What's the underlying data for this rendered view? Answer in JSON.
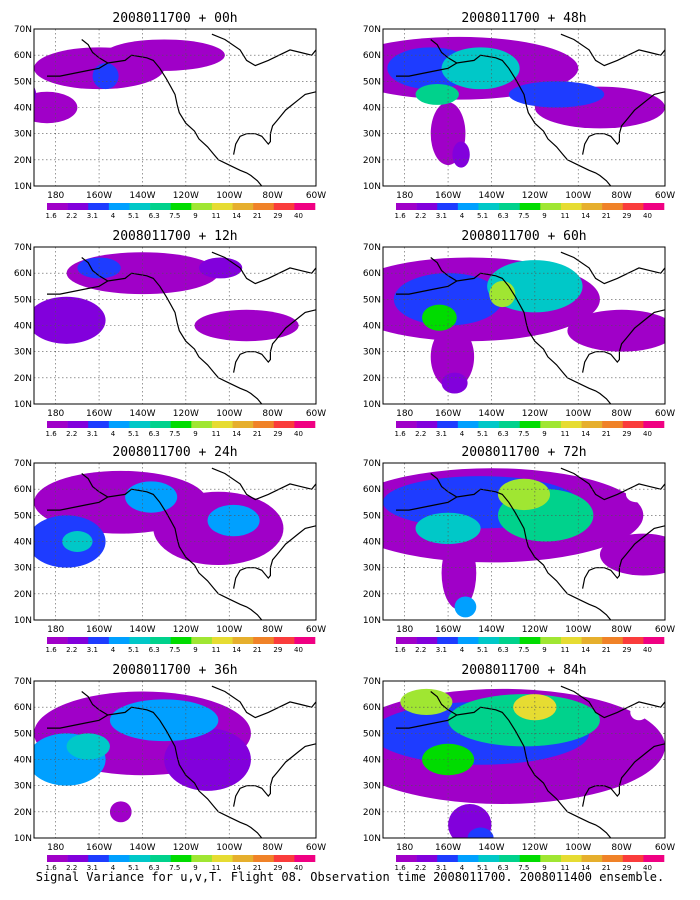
{
  "caption": "Signal Variance for u,v,T. Flight 08. Observation time 2008011700. 2008011400 ensemble.",
  "colorbar": {
    "labels": [
      "1.6",
      "2.2",
      "3.1",
      "4",
      "5.1",
      "6.3",
      "7.5",
      "9",
      "11",
      "14",
      "21",
      "29",
      "40"
    ],
    "colors": [
      "#a000c8",
      "#8200dc",
      "#1e3cff",
      "#00a0ff",
      "#00c8c8",
      "#00d28c",
      "#00dc00",
      "#a0e632",
      "#e6dc32",
      "#e6af2d",
      "#f08228",
      "#fa3c3c",
      "#f00082"
    ]
  },
  "map": {
    "xticks": [
      "180",
      "160W",
      "140W",
      "120W",
      "100W",
      "80W",
      "60W"
    ],
    "yticks": [
      "10N",
      "20N",
      "30N",
      "40N",
      "50N",
      "60N",
      "70N"
    ]
  },
  "chart_data": [
    {
      "type": "heatmap",
      "title": "2008011700 + 00h",
      "lead_hours": 0
    },
    {
      "type": "heatmap",
      "title": "2008011700 + 48h",
      "lead_hours": 48
    },
    {
      "type": "heatmap",
      "title": "2008011700 + 12h",
      "lead_hours": 12
    },
    {
      "type": "heatmap",
      "title": "2008011700 + 60h",
      "lead_hours": 60
    },
    {
      "type": "heatmap",
      "title": "2008011700 + 24h",
      "lead_hours": 24
    },
    {
      "type": "heatmap",
      "title": "2008011700 + 72h",
      "lead_hours": 72
    },
    {
      "type": "heatmap",
      "title": "2008011700 + 36h",
      "lead_hours": 36
    },
    {
      "type": "heatmap",
      "title": "2008011700 + 84h",
      "lead_hours": 84
    }
  ]
}
